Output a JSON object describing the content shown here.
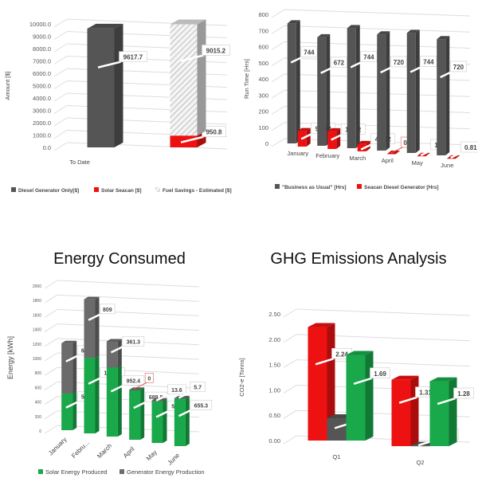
{
  "titles": {
    "energy": "Energy Consumed",
    "ghg": "GHG Emissions Analysis"
  },
  "chart_data": [
    {
      "id": "cost",
      "type": "bar",
      "title": "",
      "ylabel": "Amount [$]",
      "xlabel": "",
      "ylim": [
        0,
        10000
      ],
      "yticks": [
        "0.0",
        "1000.0",
        "2000.0",
        "3000.0",
        "4000.0",
        "5000.0",
        "6000.0",
        "7000.0",
        "8000.0",
        "9000.0",
        "10000.0"
      ],
      "categories": [
        "To Date"
      ],
      "series": [
        {
          "name": "Diesel Generator Only[$]",
          "color": "#555555",
          "stack": "a",
          "values": [
            9617.7
          ],
          "labels": [
            "9617.7"
          ]
        },
        {
          "name": "Solar Seacan [$]",
          "color": "#ee1111",
          "stack": "b",
          "values": [
            950.8
          ],
          "labels": [
            "950.8"
          ]
        },
        {
          "name": "Fuel Savings - Estimated [$]",
          "color": "#e4e4e4",
          "pattern": "hatch",
          "stack": "b",
          "values": [
            9015.2
          ],
          "labels": [
            "9015.2"
          ]
        }
      ]
    },
    {
      "id": "runtime",
      "type": "bar",
      "title": "",
      "ylabel": "Run Time [Hrs]",
      "xlabel": "",
      "ylim": [
        0,
        800
      ],
      "yticks": [
        "0",
        "100",
        "200",
        "300",
        "400",
        "500",
        "600",
        "700",
        "800"
      ],
      "categories": [
        "January",
        "February",
        "March",
        "April",
        "May",
        "June"
      ],
      "series": [
        {
          "name": "\"Business as Usual\" [Hrs]",
          "color": "#555555",
          "stack": "a",
          "values": [
            744,
            672,
            744,
            720,
            744,
            720
          ],
          "labels": [
            "744",
            "672",
            "744",
            "720",
            "744",
            "720"
          ]
        },
        {
          "name": "Seacan Diesel Generator [Hrs]",
          "color": "#ee1111",
          "stack": "b",
          "values": [
            95.72,
            109.2,
            44.92,
            0,
            1.5,
            0.81
          ],
          "labels": [
            "95.72",
            "109.2",
            "44.92",
            "0",
            "1.5",
            "0.81"
          ]
        }
      ]
    },
    {
      "id": "energy",
      "type": "bar",
      "title": "Energy Consumed",
      "ylabel": "Energy [kWh]",
      "xlabel": "",
      "ylim": [
        0,
        2000
      ],
      "yticks": [
        "0",
        "200",
        "400",
        "600",
        "800",
        "1000",
        "1200",
        "1400",
        "1600",
        "1800",
        "2000"
      ],
      "categories": [
        "January",
        "Febru...",
        "March",
        "April",
        "May",
        "June"
      ],
      "series": [
        {
          "name": "Solar Energy Produced",
          "color": "#19a84a",
          "stack": "a",
          "values": [
            506.4,
            1040.7,
            952.4,
            688.8,
            573.6,
            655.3
          ],
          "labels": [
            "506.4",
            "1040.7",
            "952.4",
            "688.8",
            "573.6",
            "655.3"
          ]
        },
        {
          "name": "Generator Energy Production",
          "color": "#6b6b6b",
          "stack": "a",
          "values": [
            693.8,
            809,
            361.3,
            0,
            13.6,
            5.7
          ],
          "labels": [
            "693.8",
            "809",
            "361.3",
            "0",
            "13.6",
            "5.7"
          ]
        }
      ]
    },
    {
      "id": "ghg",
      "type": "bar",
      "title": "GHG Emissions Analysis",
      "ylabel": "CO2-e  [Tonns]",
      "xlabel": "",
      "ylim": [
        0,
        2.5
      ],
      "yticks": [
        "0.00",
        "0.50",
        "1.00",
        "1.50",
        "2.00",
        "2.50"
      ],
      "categories": [
        "Q1",
        "Q2"
      ],
      "series": [
        {
          "name": "",
          "color": "#ee1111",
          "stack": "a",
          "values": [
            2.24,
            1.31
          ],
          "labels": [
            "2.24",
            "1.31"
          ]
        },
        {
          "name": "",
          "color": "#555555",
          "stack": "b",
          "values": [
            0.44,
            0.005
          ],
          "labels": [
            "0.44",
            "0.005"
          ]
        },
        {
          "name": "",
          "color": "#19a84a",
          "stack": "c",
          "values": [
            1.69,
            1.28
          ],
          "labels": [
            "1.69",
            "1.28"
          ]
        }
      ]
    }
  ]
}
